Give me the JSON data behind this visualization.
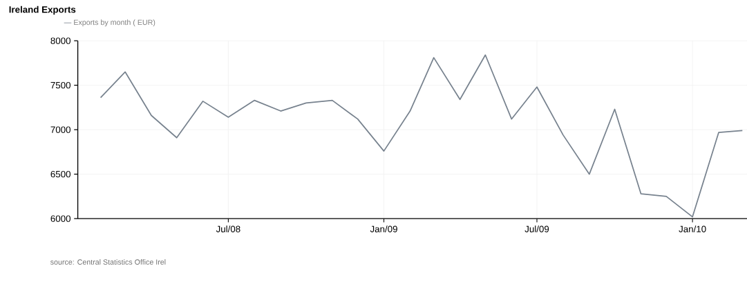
{
  "chart_data": {
    "type": "line",
    "title": "Ireland Exports",
    "x": [
      "2008-02",
      "2008-03",
      "2008-04",
      "2008-05",
      "2008-06",
      "2008-07",
      "2008-08",
      "2008-09",
      "2008-10",
      "2008-11",
      "2008-12",
      "2009-01",
      "2009-02",
      "2009-03",
      "2009-04",
      "2009-05",
      "2009-06",
      "2009-07",
      "2009-08",
      "2009-09",
      "2009-10",
      "2009-11",
      "2009-12",
      "2010-01",
      "2010-02",
      "2010-03"
    ],
    "series": [
      {
        "name": "Exports by month ( EUR)",
        "color": "#77828e",
        "values": [
          7360,
          7650,
          7160,
          6910,
          7320,
          7140,
          7330,
          7210,
          7300,
          7330,
          7120,
          6760,
          7210,
          7810,
          7340,
          7840,
          7120,
          7480,
          6940,
          6500,
          7230,
          6280,
          6250,
          6020,
          6970,
          6990
        ]
      }
    ],
    "xlim": [
      "2008-01-05",
      "2010-03-20"
    ],
    "xticks": [
      {
        "value": "2008-07",
        "label": "Jul/08"
      },
      {
        "value": "2009-01",
        "label": "Jan/09"
      },
      {
        "value": "2009-07",
        "label": "Jul/09"
      },
      {
        "value": "2010-01",
        "label": "Jan/10"
      }
    ],
    "ylim": [
      6000,
      8000
    ],
    "yticks": [
      6000,
      6500,
      7000,
      7500,
      8000
    ],
    "grid": true,
    "legend": "top left",
    "marker": "none",
    "line_style": "solid",
    "annotations": [
      "source: Central Statistics Office Irel"
    ]
  }
}
